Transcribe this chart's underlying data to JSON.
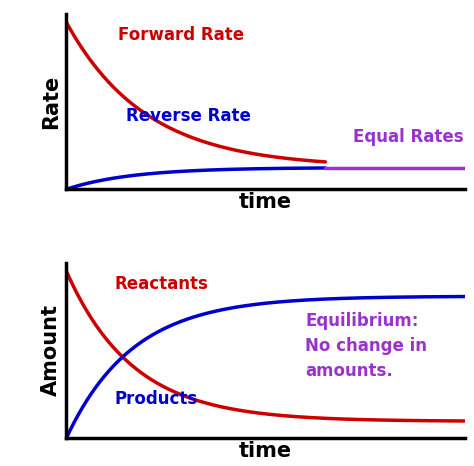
{
  "fig_width": 4.74,
  "fig_height": 4.66,
  "dpi": 100,
  "bg_color": "#ffffff",
  "panel1": {
    "ylabel": "Rate",
    "xlabel": "time",
    "forward_color": "#cc0000",
    "reverse_color": "#0000cc",
    "equal_color": "#9933cc",
    "forward_label": "Forward Rate",
    "reverse_label": "Reverse Rate",
    "equal_label": "Equal Rates",
    "label_fontsize": 12,
    "axis_label_fontsize": 15,
    "axis_label_fontweight": "bold",
    "eq_time": 6.5,
    "eq_level": 0.13
  },
  "panel2": {
    "ylabel": "Amount",
    "xlabel": "time",
    "reactant_color": "#cc0000",
    "product_color": "#0000cc",
    "equil_color": "#9933cc",
    "reactant_label": "Reactants",
    "product_label": "Products",
    "equil_label": "Equilibrium:\nNo change in\namounts.",
    "label_fontsize": 12,
    "axis_label_fontsize": 15,
    "axis_label_fontweight": "bold",
    "eq_time": 6.0
  }
}
